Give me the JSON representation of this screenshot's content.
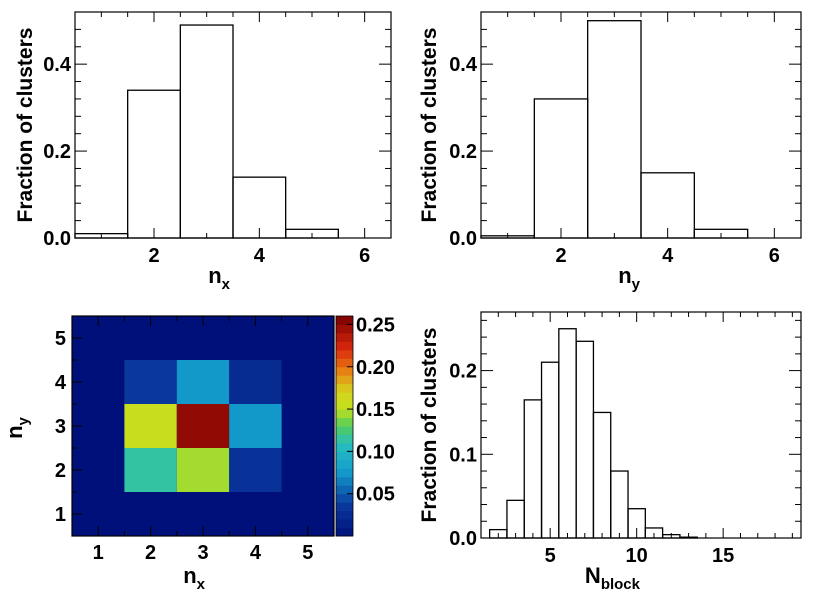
{
  "chart_data": [
    {
      "type": "bar",
      "panel": "top-left",
      "xlabel": "n",
      "xlabel_sub": "x",
      "ylabel": "Fraction of clusters",
      "xlim": [
        0.5,
        6.5
      ],
      "ylim": [
        0,
        0.52
      ],
      "xticks": [
        "2",
        "4",
        "6"
      ],
      "yticks": [
        "0.0",
        "0.2",
        "0.4"
      ],
      "bins": [
        1,
        2,
        3,
        4,
        5,
        6
      ],
      "values": [
        0.01,
        0.34,
        0.49,
        0.14,
        0.02,
        0.0
      ]
    },
    {
      "type": "bar",
      "panel": "top-right",
      "xlabel": "n",
      "xlabel_sub": "y",
      "ylabel": "Fraction of clusters",
      "xlim": [
        0.5,
        6.5
      ],
      "ylim": [
        0,
        0.52
      ],
      "xticks": [
        "2",
        "4",
        "6"
      ],
      "yticks": [
        "0.0",
        "0.2",
        "0.4"
      ],
      "bins": [
        1,
        2,
        3,
        4,
        5,
        6
      ],
      "values": [
        0.005,
        0.32,
        0.5,
        0.15,
        0.02,
        0.0
      ]
    },
    {
      "type": "heatmap",
      "panel": "bottom-left",
      "xlabel": "n",
      "xlabel_sub": "x",
      "ylabel": "n",
      "ylabel_sub": "y",
      "xlim": [
        0.5,
        5.5
      ],
      "ylim": [
        0.5,
        5.5
      ],
      "xticks": [
        "1",
        "2",
        "3",
        "4",
        "5"
      ],
      "yticks": [
        "1",
        "2",
        "3",
        "4",
        "5"
      ],
      "cells": [
        {
          "x": 2,
          "y": 2,
          "value": 0.115
        },
        {
          "x": 3,
          "y": 2,
          "value": 0.145
        },
        {
          "x": 4,
          "y": 2,
          "value": 0.03
        },
        {
          "x": 2,
          "y": 3,
          "value": 0.155
        },
        {
          "x": 3,
          "y": 3,
          "value": 0.25
        },
        {
          "x": 4,
          "y": 3,
          "value": 0.075
        },
        {
          "x": 2,
          "y": 4,
          "value": 0.035
        },
        {
          "x": 3,
          "y": 4,
          "value": 0.075
        },
        {
          "x": 4,
          "y": 4,
          "value": 0.025
        }
      ],
      "colorbar": {
        "range": [
          0,
          0.26
        ],
        "ticks": [
          "0.25",
          "0.20",
          "0.15",
          "0.10",
          "0.05"
        ],
        "tick_values": [
          0.25,
          0.2,
          0.15,
          0.1,
          0.05
        ]
      }
    },
    {
      "type": "bar",
      "panel": "bottom-right",
      "xlabel": "N",
      "xlabel_sub": "block",
      "ylabel": "Fraction of clusters",
      "xlim": [
        1,
        19.5
      ],
      "ylim": [
        0,
        0.27
      ],
      "xticks": [
        "5",
        "10",
        "15"
      ],
      "yticks": [
        "0.0",
        "0.1",
        "0.2"
      ],
      "bins": [
        1,
        2,
        3,
        4,
        5,
        6,
        7,
        8,
        9,
        10,
        11,
        12,
        13
      ],
      "values": [
        0.0,
        0.01,
        0.045,
        0.165,
        0.21,
        0.25,
        0.235,
        0.15,
        0.08,
        0.035,
        0.012,
        0.004,
        0.001
      ]
    }
  ]
}
